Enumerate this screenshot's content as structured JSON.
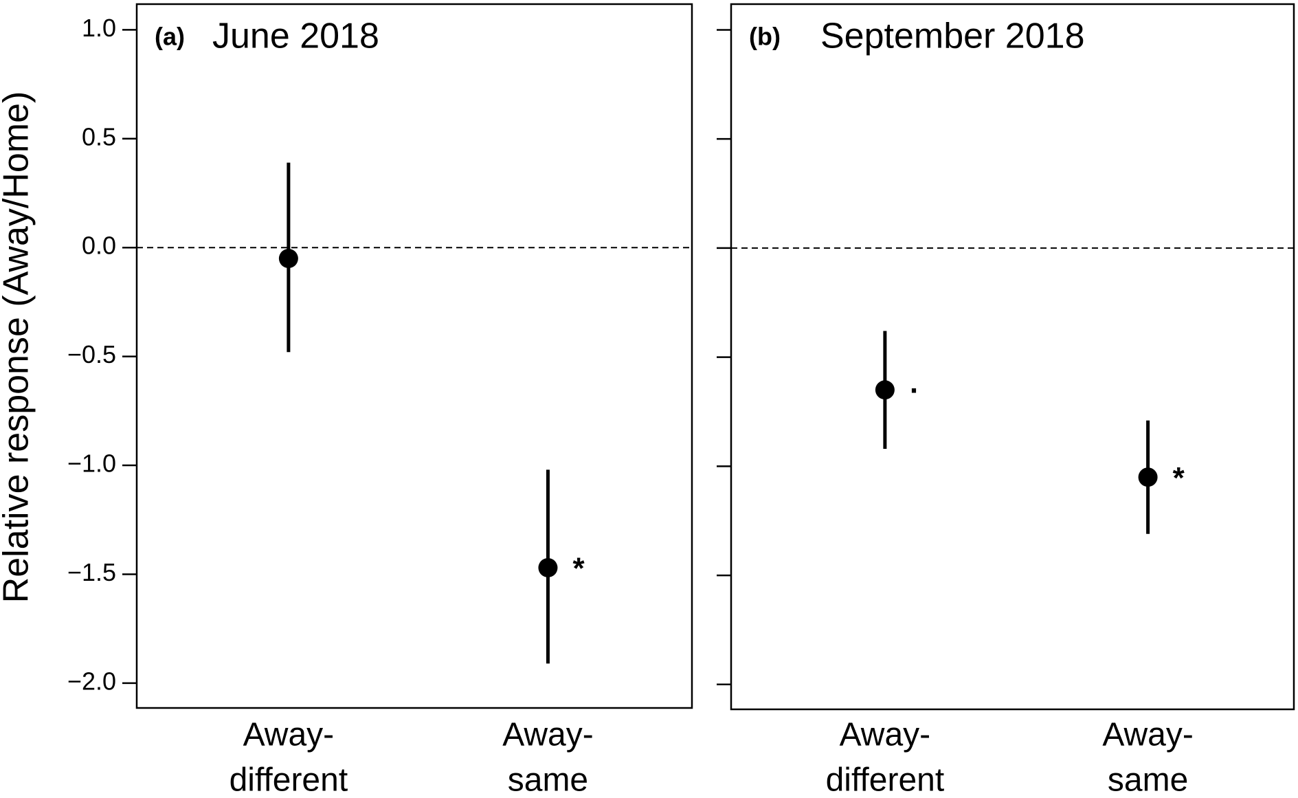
{
  "chart_data": [
    {
      "type": "errorbar",
      "panel_label": "(a)",
      "title": "June 2018",
      "ylabel": "Relative response (Away/Home)",
      "categories": [
        [
          "Away-",
          "different"
        ],
        [
          "Away-",
          "same"
        ]
      ],
      "values": [
        -0.05,
        -1.47
      ],
      "lower": [
        -0.48,
        -1.91
      ],
      "upper": [
        0.39,
        -1.02
      ],
      "annotations": [
        null,
        "*"
      ],
      "color": "#000000",
      "reference_line": 0,
      "ylim": [
        -2.114,
        1.118
      ],
      "yticks": [
        {
          "value": 1.0,
          "label": "1.0"
        },
        {
          "value": 0.5,
          "label": "0.5"
        },
        {
          "value": 0,
          "label": "0.0"
        },
        {
          "value": -0.5,
          "label": "−0.5"
        },
        {
          "value": -1.0,
          "label": "−1.0"
        },
        {
          "value": -1.5,
          "label": "−1.5"
        },
        {
          "value": -2.0,
          "label": "−2.0"
        }
      ],
      "tick_labels": true
    },
    {
      "type": "errorbar",
      "panel_label": "(b)",
      "title": "September 2018",
      "categories": [
        [
          "Away-",
          "different"
        ],
        [
          "Away-",
          "same"
        ]
      ],
      "values": [
        -0.65,
        -1.05
      ],
      "lower": [
        -0.92,
        -1.31
      ],
      "upper": [
        -0.38,
        -0.79
      ],
      "annotations": [
        "·",
        "*"
      ],
      "color": "#000000",
      "reference_line": 0,
      "ylim": [
        -2.114,
        1.118
      ],
      "yticks": [
        1.0,
        0.5,
        0,
        -0.5,
        -1.0,
        -1.5,
        -2.0
      ],
      "tick_labels": false
    }
  ]
}
